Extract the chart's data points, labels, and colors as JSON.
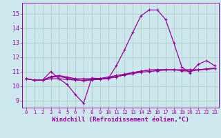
{
  "xlabel": "Windchill (Refroidissement éolien,°C)",
  "bg_color": "#cce8ee",
  "line_color": "#990099",
  "grid_color": "#aaccbb",
  "x": [
    0,
    1,
    2,
    3,
    4,
    5,
    6,
    7,
    8,
    9,
    10,
    11,
    12,
    13,
    14,
    15,
    16,
    17,
    18,
    19,
    20,
    21,
    22,
    23
  ],
  "y_main": [
    10.5,
    10.4,
    10.4,
    11.0,
    10.5,
    10.1,
    9.4,
    8.8,
    10.55,
    10.5,
    10.5,
    11.4,
    12.5,
    13.7,
    14.85,
    15.25,
    15.25,
    14.6,
    13.0,
    11.3,
    10.9,
    11.5,
    11.75,
    11.4
  ],
  "y_line2": [
    10.5,
    10.4,
    10.4,
    10.5,
    10.5,
    10.45,
    10.4,
    10.4,
    10.45,
    10.5,
    10.55,
    10.65,
    10.75,
    10.85,
    10.95,
    11.0,
    11.05,
    11.1,
    11.1,
    11.1,
    11.1,
    11.12,
    11.15,
    11.2
  ],
  "y_line3": [
    10.5,
    10.4,
    10.4,
    10.6,
    10.65,
    10.55,
    10.45,
    10.35,
    10.42,
    10.45,
    10.52,
    10.62,
    10.78,
    10.92,
    11.02,
    11.1,
    11.12,
    11.12,
    11.12,
    11.05,
    11.02,
    11.1,
    11.18,
    11.22
  ],
  "y_line4": [
    10.5,
    10.4,
    10.4,
    10.65,
    10.72,
    10.62,
    10.5,
    10.5,
    10.5,
    10.52,
    10.62,
    10.72,
    10.82,
    10.92,
    11.02,
    11.1,
    11.12,
    11.12,
    11.12,
    11.12,
    11.12,
    11.12,
    11.18,
    11.22
  ],
  "ylim": [
    8.5,
    15.75
  ],
  "yticks": [
    9,
    10,
    11,
    12,
    13,
    14,
    15
  ],
  "xlim": [
    -0.5,
    23.5
  ],
  "xticks": [
    0,
    1,
    2,
    3,
    4,
    5,
    6,
    7,
    8,
    9,
    10,
    11,
    12,
    13,
    14,
    15,
    16,
    17,
    18,
    19,
    20,
    21,
    22,
    23
  ],
  "marker": "+",
  "markersize": 3.5,
  "linewidth": 0.9,
  "font_color": "#990099",
  "xlabel_fontsize": 6.5,
  "tick_fontsize": 6.0
}
